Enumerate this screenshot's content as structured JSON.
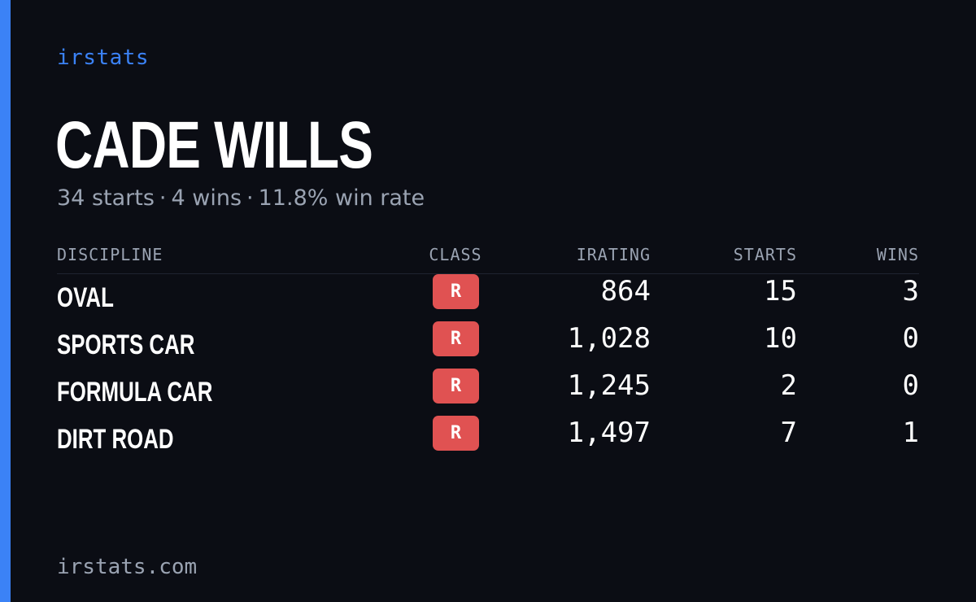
{
  "brand": "irstats",
  "driver": {
    "name": "CADE WILLS",
    "starts_text": "34 starts",
    "wins_text": "4 wins",
    "win_rate_text": "11.8% win rate",
    "separator": "·"
  },
  "table": {
    "headers": {
      "discipline": "DISCIPLINE",
      "class": "CLASS",
      "irating": "IRATING",
      "starts": "STARTS",
      "wins": "WINS"
    },
    "rows": [
      {
        "discipline": "OVAL",
        "class": "R",
        "irating": "864",
        "starts": "15",
        "wins": "3"
      },
      {
        "discipline": "SPORTS CAR",
        "class": "R",
        "irating": "1,028",
        "starts": "10",
        "wins": "0"
      },
      {
        "discipline": "FORMULA CAR",
        "class": "R",
        "irating": "1,245",
        "starts": "2",
        "wins": "0"
      },
      {
        "discipline": "DIRT ROAD",
        "class": "R",
        "irating": "1,497",
        "starts": "7",
        "wins": "1"
      }
    ]
  },
  "footer": "irstats.com",
  "colors": {
    "accent": "#3b82f6",
    "class_badge": "#e05252",
    "background": "#0b0d14",
    "muted_text": "#9aa3b2"
  }
}
